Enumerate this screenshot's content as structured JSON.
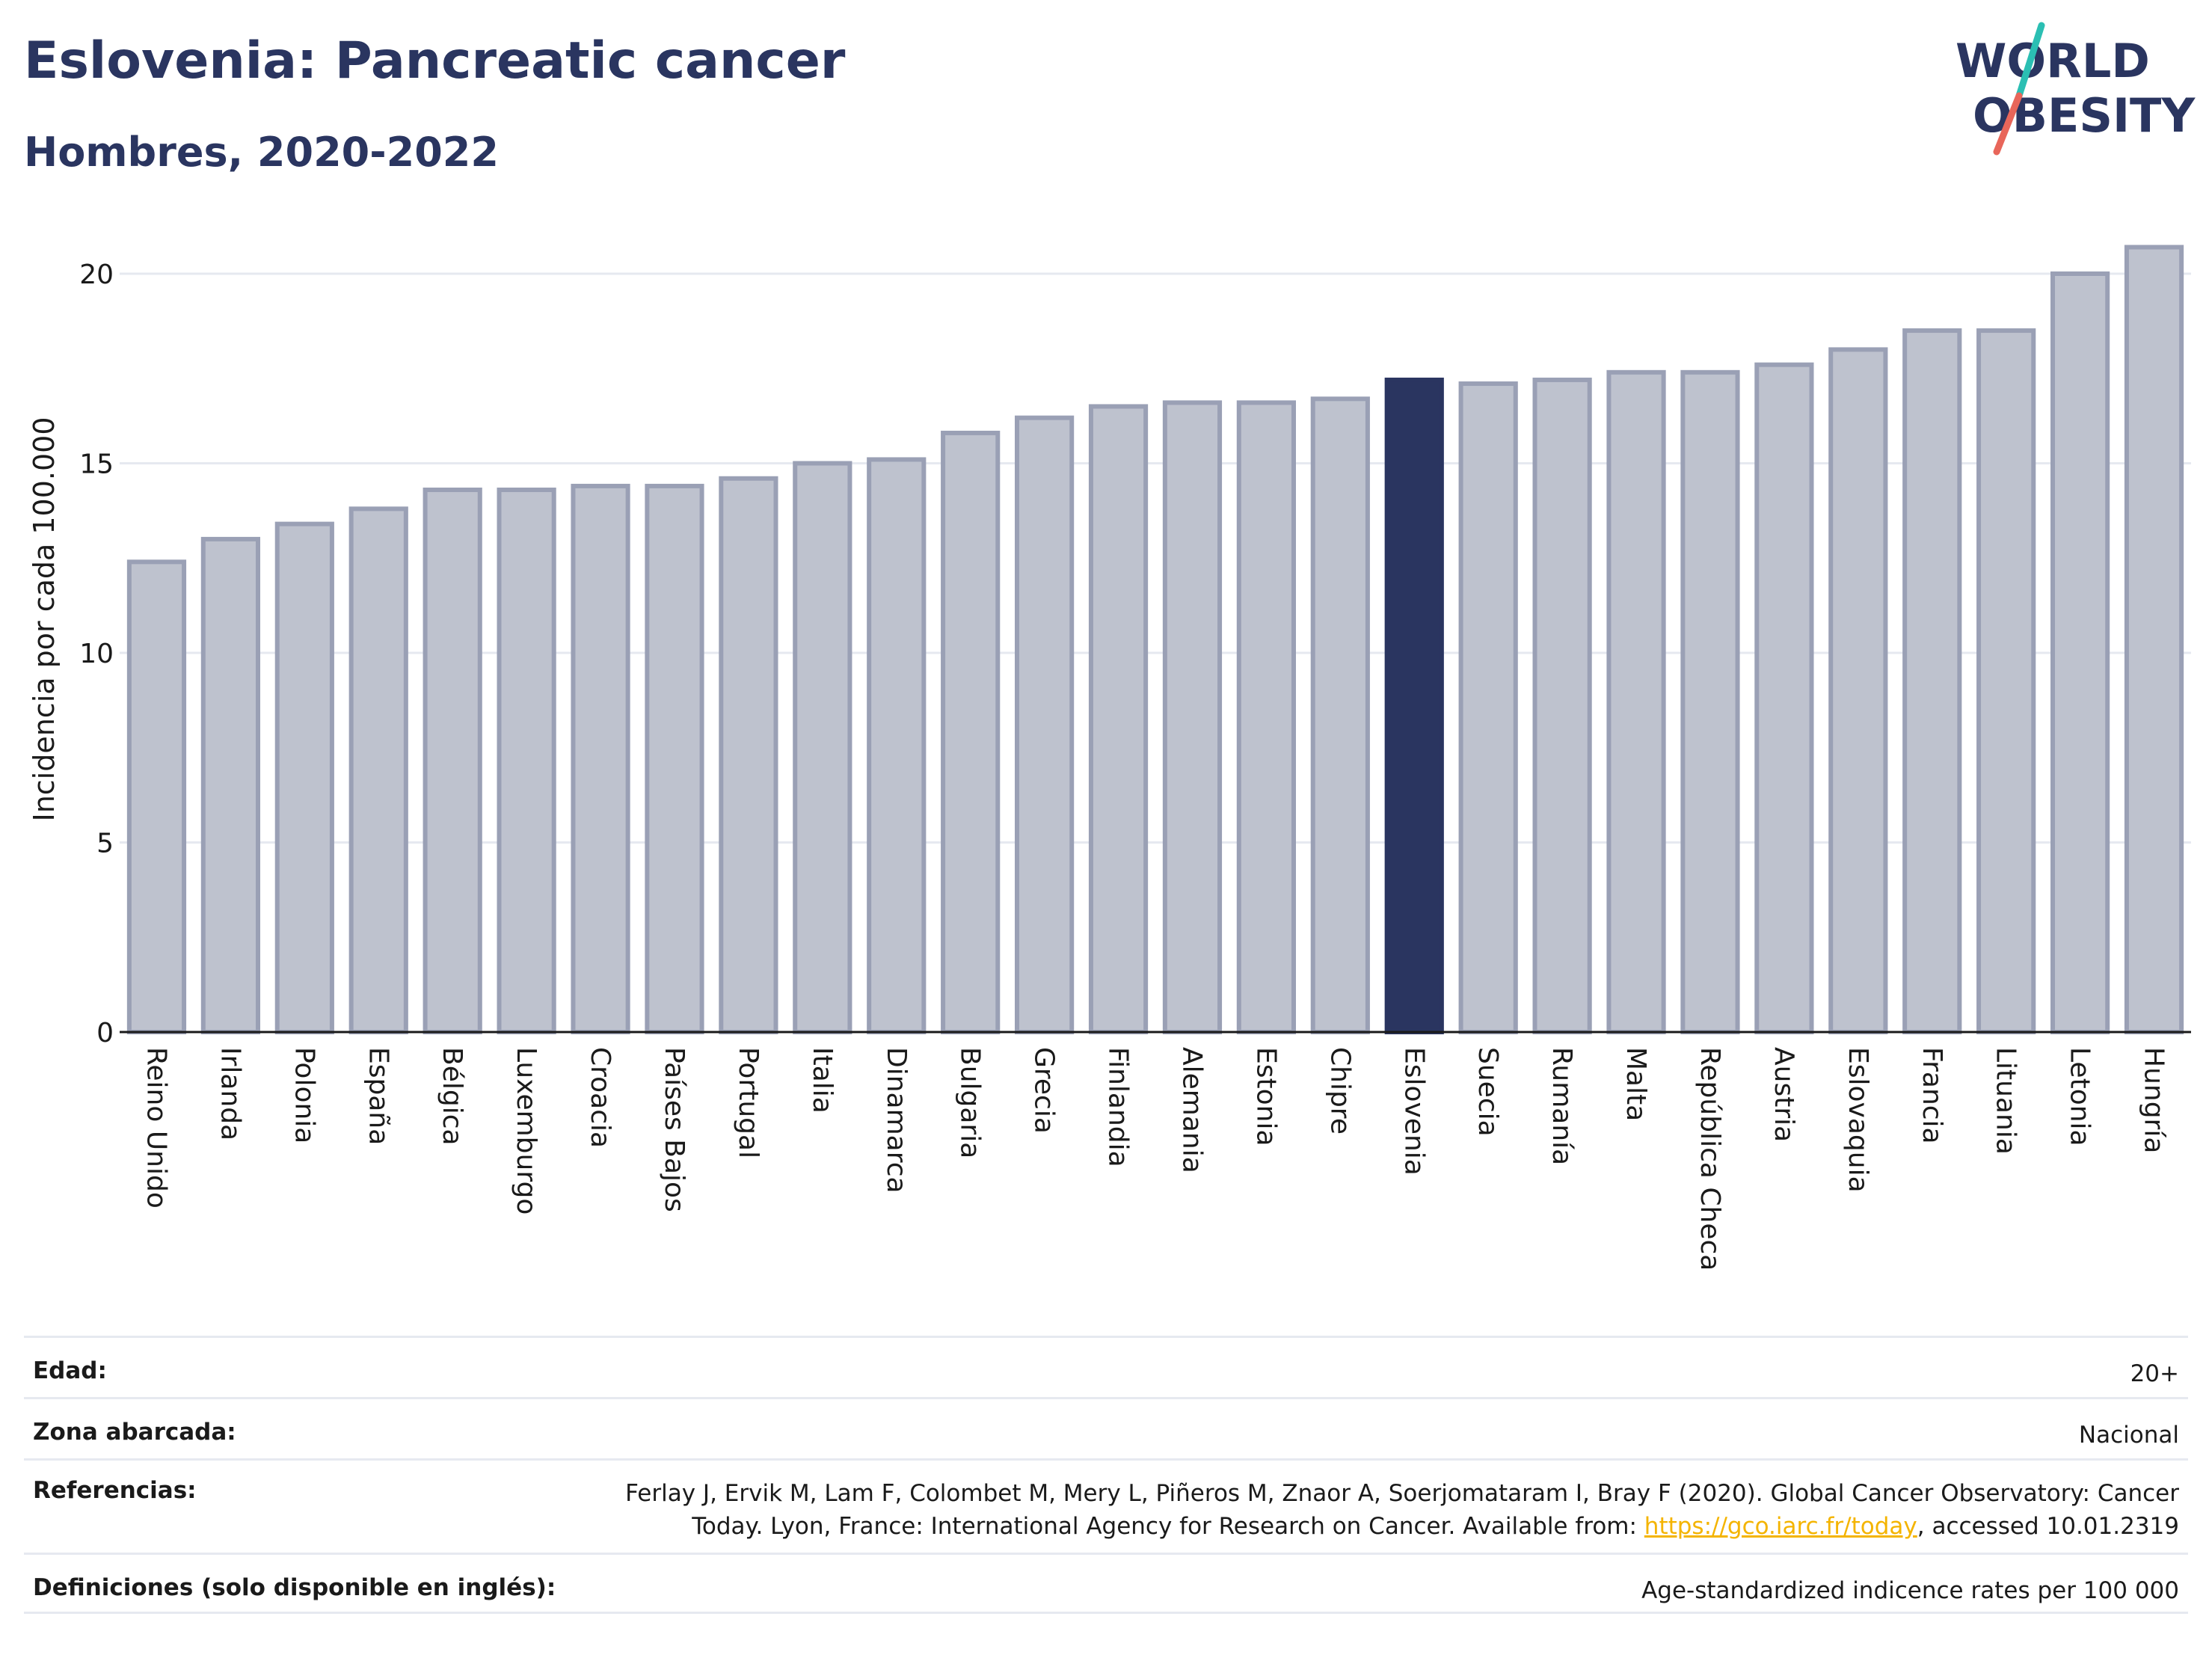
{
  "header": {
    "title": "Eslovenia: Pancreatic cancer",
    "subtitle": "Hombres, 2020-2022"
  },
  "logo": {
    "line1": "WORLD",
    "line2": "OBESITY",
    "colors": {
      "text": "#2a3560",
      "slash_top": "#2bbfb3",
      "slash_bottom": "#e8665a"
    }
  },
  "colors": {
    "bar_default": "#bec2ce",
    "bar_border": "#9aa0b5",
    "bar_highlight": "#2a3560",
    "grid": "#e6e9f0",
    "axis": "#1a1a1a"
  },
  "chart_data": {
    "type": "bar",
    "ylabel": "Incidencia por cada 100.000",
    "xlabel": "",
    "ylim": [
      0,
      21.5
    ],
    "yticks": [
      0,
      5,
      10,
      15,
      20
    ],
    "grid": true,
    "highlight": "Eslovenia",
    "categories": [
      "Reino Unido",
      "Irlanda",
      "Polonia",
      "España",
      "Bélgica",
      "Luxemburgo",
      "Croacia",
      "Países Bajos",
      "Portugal",
      "Italia",
      "Dinamarca",
      "Bulgaria",
      "Grecia",
      "Finlandia",
      "Alemania",
      "Estonia",
      "Chipre",
      "Eslovenia",
      "Suecia",
      "Rumanía",
      "Malta",
      "República Checa",
      "Austria",
      "Eslovaquia",
      "Francia",
      "Lituania",
      "Letonia",
      "Hungría"
    ],
    "values": [
      12.4,
      13.0,
      13.4,
      13.8,
      14.3,
      14.3,
      14.4,
      14.4,
      14.6,
      15.0,
      15.1,
      15.8,
      16.2,
      16.5,
      16.6,
      16.6,
      16.7,
      17.2,
      17.1,
      17.2,
      17.4,
      17.4,
      17.6,
      18.0,
      18.5,
      18.5,
      20.0,
      20.7
    ]
  },
  "info": {
    "age_label": "Edad:",
    "age_value": "20+",
    "zone_label": "Zona abarcada:",
    "zone_value": "Nacional",
    "refs_label": "Referencias:",
    "refs_line1": "Ferlay J, Ervik M, Lam F, Colombet M, Mery L, Piñeros M, Znaor A, Soerjomataram I, Bray F (2020). Global Cancer Observatory: Cancer",
    "refs_line2_pre": "Today. Lyon, France: International Agency for Research on Cancer. Available from: ",
    "refs_link": "https://gco.iarc.fr/today",
    "refs_line2_post": ", accessed 10.01.2319",
    "defs_label": "Definiciones (solo disponible en inglés):",
    "defs_value": "Age-standardized indicence rates per 100 000"
  }
}
